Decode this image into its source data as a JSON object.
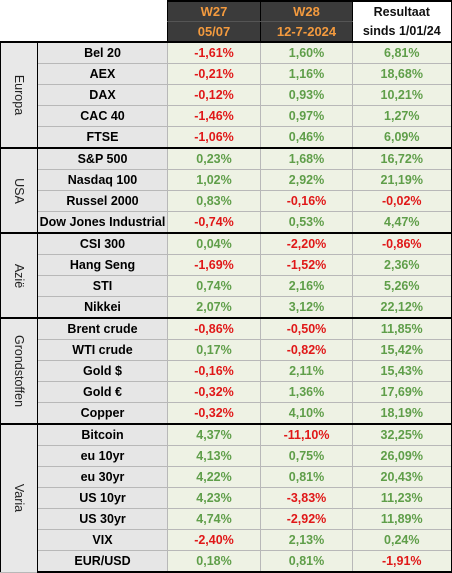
{
  "header": {
    "w27_label": "W27",
    "w27_date": "05/07",
    "w28_label": "W28",
    "w28_date": "12-7-2024",
    "result_line1": "Resultaat",
    "result_line2": "sinds 1/01/24"
  },
  "colors": {
    "positive": "#5f9e49",
    "negative": "#e01818",
    "header_bg": "#3b3b3b",
    "header_text": "#f39a3e"
  },
  "groups": [
    {
      "name": "Europa",
      "rows": [
        {
          "name": "Bel 20",
          "w27": "-1,61%",
          "w28": "1,60%",
          "ytd": "6,81%"
        },
        {
          "name": "AEX",
          "w27": "-0,21%",
          "w28": "1,16%",
          "ytd": "18,68%"
        },
        {
          "name": "DAX",
          "w27": "-0,12%",
          "w28": "0,93%",
          "ytd": "10,21%"
        },
        {
          "name": "CAC 40",
          "w27": "-1,46%",
          "w28": "0,97%",
          "ytd": "1,27%"
        },
        {
          "name": "FTSE",
          "w27": "-1,06%",
          "w28": "0,46%",
          "ytd": "6,09%"
        }
      ]
    },
    {
      "name": "USA",
      "rows": [
        {
          "name": "S&P 500",
          "w27": "0,23%",
          "w28": "1,68%",
          "ytd": "16,72%"
        },
        {
          "name": "Nasdaq 100",
          "w27": "1,02%",
          "w28": "2,92%",
          "ytd": "21,19%"
        },
        {
          "name": "Russel 2000",
          "w27": "0,83%",
          "w28": "-0,16%",
          "ytd": "-0,02%"
        },
        {
          "name": "Dow Jones Industrial",
          "w27": "-0,74%",
          "w28": "0,53%",
          "ytd": "4,47%"
        }
      ]
    },
    {
      "name": "Azië",
      "rows": [
        {
          "name": "CSI 300",
          "w27": "0,04%",
          "w28": "-2,20%",
          "ytd": "-0,86%"
        },
        {
          "name": "Hang Seng",
          "w27": "-1,69%",
          "w28": "-1,52%",
          "ytd": "2,36%"
        },
        {
          "name": "STI",
          "w27": "0,74%",
          "w28": "2,16%",
          "ytd": "5,26%"
        },
        {
          "name": "Nikkei",
          "w27": "2,07%",
          "w28": "3,12%",
          "ytd": "22,12%"
        }
      ]
    },
    {
      "name": "Grondstoffen",
      "rows": [
        {
          "name": "Brent crude",
          "w27": "-0,86%",
          "w28": "-0,50%",
          "ytd": "11,85%"
        },
        {
          "name": "WTI crude",
          "w27": "0,17%",
          "w28": "-0,82%",
          "ytd": "15,42%"
        },
        {
          "name": "Gold $",
          "w27": "-0,16%",
          "w28": "2,11%",
          "ytd": "15,43%"
        },
        {
          "name": "Gold €",
          "w27": "-0,32%",
          "w28": "1,36%",
          "ytd": "17,69%"
        },
        {
          "name": "Copper",
          "w27": "-0,32%",
          "w28": "4,10%",
          "ytd": "18,19%"
        }
      ]
    },
    {
      "name": "Varia",
      "rows": [
        {
          "name": "Bitcoin",
          "w27": "4,37%",
          "w28": "-11,10%",
          "ytd": "32,25%"
        },
        {
          "name": "eu 10yr",
          "w27": "4,13%",
          "w28": "0,75%",
          "ytd": "26,09%"
        },
        {
          "name": "eu 30yr",
          "w27": "4,22%",
          "w28": "0,81%",
          "ytd": "20,43%"
        },
        {
          "name": "US 10yr",
          "w27": "4,23%",
          "w28": "-3,83%",
          "ytd": "11,23%"
        },
        {
          "name": "US 30yr",
          "w27": "4,74%",
          "w28": "-2,92%",
          "ytd": "11,89%"
        },
        {
          "name": "VIX",
          "w27": "-2,40%",
          "w28": "2,13%",
          "ytd": "0,24%"
        },
        {
          "name": "EUR/USD",
          "w27": "0,18%",
          "w28": "0,81%",
          "ytd": "-1,91%"
        }
      ]
    }
  ]
}
